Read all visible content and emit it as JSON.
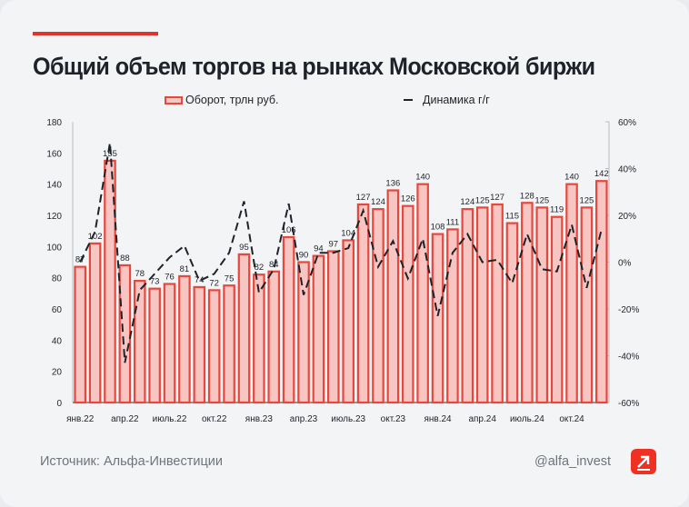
{
  "title": "Общий объем торгов на рынках Московской биржи",
  "footer": {
    "source": "Источник: Альфа-Инвестиции",
    "handle": "@alfa_invest"
  },
  "colors": {
    "accent": "#e0332b",
    "bar_fill": "#f7c6c3",
    "bar_stroke": "#e9463c",
    "line": "#1f2329",
    "logo": "#ef3124"
  },
  "logo": {
    "name": "alfa-arrow-logo"
  },
  "chart_data": {
    "type": "bar+line",
    "title": "Общий объем торгов на рынках Московской биржи",
    "legend_placement": "top",
    "grid": false,
    "categories": [
      "янв.22",
      "фев.22",
      "мар.22",
      "апр.22",
      "май.22",
      "июн.22",
      "июль.22",
      "авг.22",
      "сен.22",
      "окт.22",
      "ноя.22",
      "дек.22",
      "янв.23",
      "фев.23",
      "мар.23",
      "апр.23",
      "май.23",
      "июн.23",
      "июль.23",
      "авг.23",
      "сен.23",
      "окт.23",
      "ноя.23",
      "дек.23",
      "янв.24",
      "фев.24",
      "мар.24",
      "апр.24",
      "май.24",
      "июн.24",
      "июль.24",
      "авг.24",
      "сен.24",
      "окт.24",
      "ноя.24",
      "дек.24"
    ],
    "tick_labels": [
      "янв.22",
      "апр.22",
      "июль.22",
      "окт.22",
      "янв.23",
      "апр.23",
      "июль.23",
      "окт.23",
      "янв.24",
      "апр.24",
      "июль.24",
      "окт.24"
    ],
    "y_ticks": [
      0,
      20,
      40,
      60,
      80,
      100,
      120,
      140,
      160,
      180
    ],
    "y2_ticks": [
      "-60%",
      "-40%",
      "-20%",
      "0%",
      "20%",
      "40%",
      "60%"
    ],
    "ylim": [
      0,
      180
    ],
    "y2lim": [
      -60,
      60
    ],
    "series": [
      {
        "name": "Оборот, трлн руб.",
        "type": "bar",
        "axis": "left",
        "values": [
          87,
          102,
          155,
          88,
          78,
          73,
          76,
          81,
          74,
          72,
          75,
          95,
          82,
          84,
          106,
          90,
          94,
          97,
          104,
          127,
          124,
          136,
          126,
          140,
          108,
          111,
          124,
          125,
          127,
          115,
          128,
          125,
          119,
          140,
          125,
          142
        ]
      },
      {
        "name": "Динамика г/г",
        "type": "line",
        "style": "dashed",
        "axis": "right",
        "unit": "%",
        "values": [
          0,
          13,
          51,
          -43,
          -12,
          -5,
          2,
          7,
          -8,
          -5,
          4,
          26,
          -13,
          -3,
          25,
          -14,
          4,
          4,
          6,
          22,
          -2,
          9,
          -7,
          10,
          -23,
          4,
          12,
          0,
          1,
          -9,
          12,
          -3,
          -4,
          16,
          -11,
          14
        ]
      }
    ]
  }
}
